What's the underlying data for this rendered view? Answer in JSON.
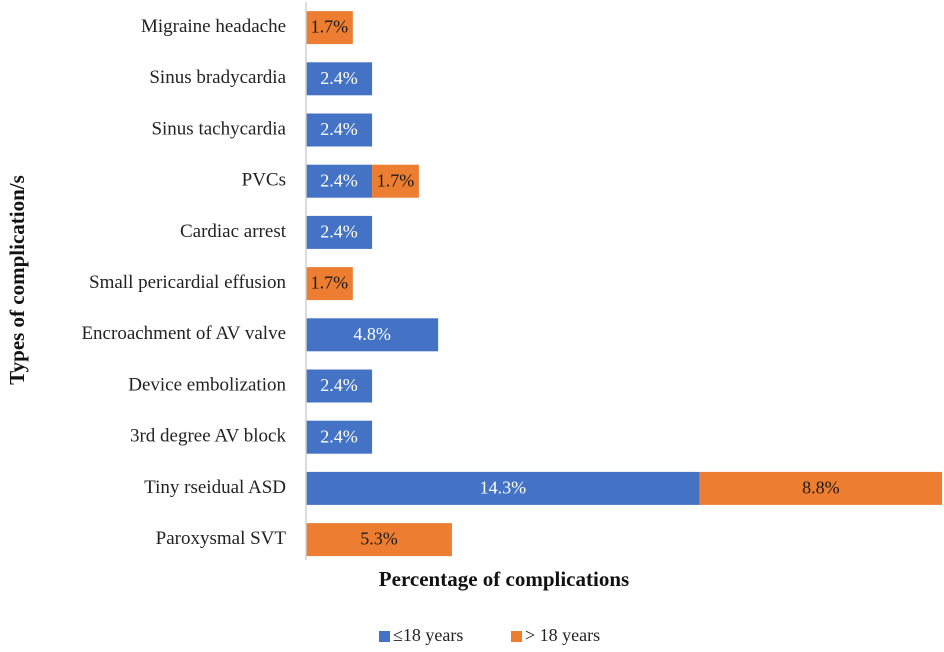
{
  "chart_data": {
    "type": "bar",
    "orientation": "horizontal",
    "stacked": true,
    "title": "",
    "xlabel": "Percentage of complications",
    "ylabel": "Types of complication/s",
    "xlim": [
      0,
      23.1
    ],
    "grid": false,
    "legend_position": "bottom",
    "categories": [
      "Migraine headache",
      "Sinus bradycardia",
      "Sinus tachycardia",
      "PVCs",
      "Cardiac arrest",
      "Small pericardial effusion",
      "Encroachment of AV valve",
      "Device embolization",
      "3rd degree AV block",
      "Tiny rseidual ASD",
      "Paroxysmal SVT"
    ],
    "series": [
      {
        "name": "≤18 years",
        "color": "#4472C4",
        "label_color": "#ffffff",
        "values": [
          null,
          2.4,
          2.4,
          2.4,
          2.4,
          null,
          4.8,
          2.4,
          2.4,
          14.3,
          null
        ],
        "labels": [
          null,
          "2.4%",
          "2.4%",
          "2.4%",
          "2.4%",
          null,
          "4.8%",
          "2.4%",
          "2.4%",
          "14.3%",
          null
        ]
      },
      {
        "name": "> 18 years",
        "color": "#ED7D31",
        "label_color": "#1a1a1a",
        "values": [
          1.7,
          null,
          null,
          1.7,
          null,
          1.7,
          null,
          null,
          null,
          8.8,
          5.3
        ],
        "labels": [
          "1.7%",
          null,
          null,
          "1.7%",
          null,
          "1.7%",
          null,
          null,
          null,
          "8.8%",
          "5.3%"
        ]
      }
    ],
    "axis_color": "#d0d0d0"
  }
}
